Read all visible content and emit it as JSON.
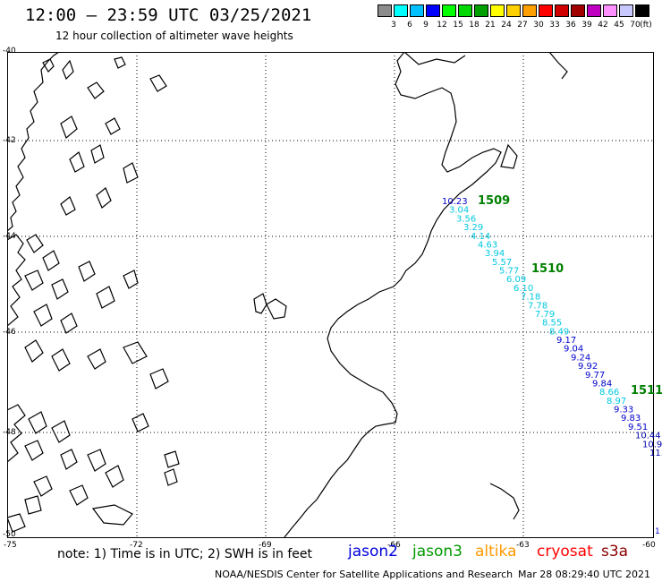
{
  "title": "12:00 — 23:59 UTC 03/25/2021",
  "subtitle": "12 hour collection of altimeter wave heights",
  "legend": {
    "unit": "(ft)",
    "colors": [
      "#8c8c8c",
      "#00ffff",
      "#00bfff",
      "#0000ff",
      "#00ff00",
      "#00d800",
      "#00a000",
      "#ffff00",
      "#ffd000",
      "#ffa000",
      "#ff0000",
      "#d00000",
      "#a00000",
      "#c000c0",
      "#ff90ff",
      "#c8c8ff",
      "#000000"
    ],
    "labels": [
      "3",
      "6",
      "9",
      "12",
      "15",
      "18",
      "21",
      "24",
      "27",
      "30",
      "33",
      "36",
      "39",
      "42",
      "45",
      "70"
    ]
  },
  "axes": {
    "lat_labels": [
      "-40",
      "-42",
      "-44",
      "-46",
      "-48",
      "-50"
    ],
    "lon_labels": [
      "-75",
      "-72",
      "-69",
      "-66",
      "-63",
      "-60"
    ]
  },
  "map": {
    "track_labels": [
      "1509",
      "1510",
      "1511"
    ],
    "track_label_color": "#008000",
    "wave_heights": [
      "10.23",
      "3.04",
      "3.56",
      "3.29",
      "4.14",
      "4.63",
      "3.94",
      "5.57",
      "5.77",
      "6.09",
      "6.10",
      "7.18",
      "7.78",
      "7.79",
      "8.55",
      "8.49",
      "9.17",
      "9.04",
      "9.24",
      "9.92",
      "9.77",
      "9.84",
      "8.66",
      "8.97",
      "9.33",
      "9.83",
      "9.51",
      "10.44",
      "10.9",
      "11."
    ],
    "edge_value": "1"
  },
  "note": "note: 1) Time is in UTC; 2) SWH is in feet",
  "satellites": [
    {
      "name": "jason2",
      "color": "#0000dd"
    },
    {
      "name": "jason3",
      "color": "#009900"
    },
    {
      "name": "altika",
      "color": "#ff9900"
    },
    {
      "name": "cryosat",
      "color": "#ff0000"
    },
    {
      "name": "s3a",
      "color": "#880000"
    }
  ],
  "credit": "NOAA/NESDIS Center for Satellite Applications and Research",
  "timestamp": "Mar 28 08:29:40 UTC 2021"
}
